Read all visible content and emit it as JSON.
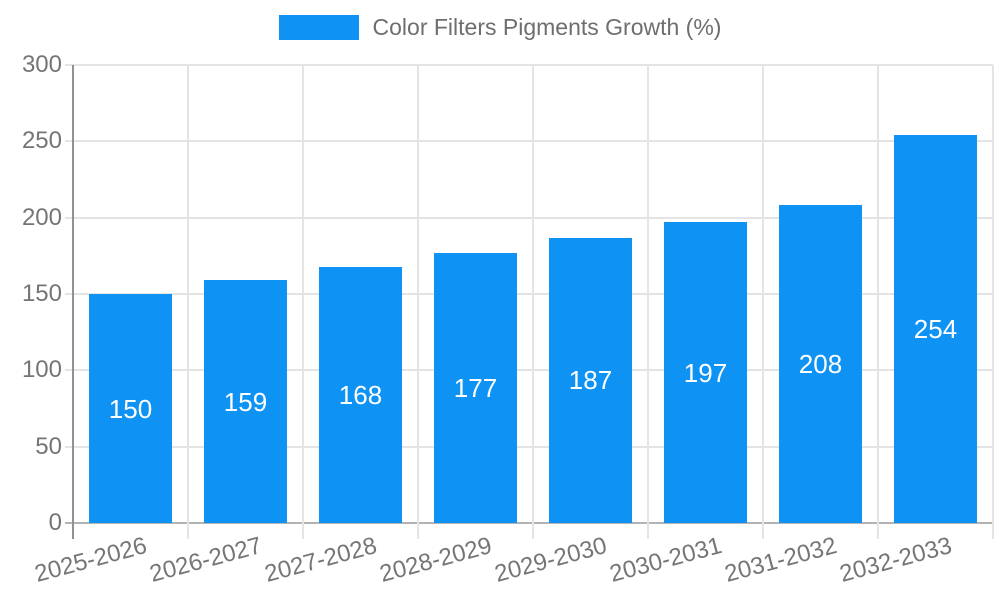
{
  "chart_data": {
    "type": "bar",
    "title": "Color Filters Pigments Growth (%)",
    "series_name": "Color Filters Pigments Growth (%)",
    "categories": [
      "2025-2026",
      "2026-2027",
      "2027-2028",
      "2028-2029",
      "2029-2030",
      "2030-2031",
      "2031-2032",
      "2032-2033"
    ],
    "values": [
      150,
      159,
      168,
      177,
      187,
      197,
      208,
      254
    ],
    "xlabel": "",
    "ylabel": "",
    "ylim": [
      0,
      300
    ],
    "yticks": [
      0,
      50,
      100,
      150,
      200,
      250,
      300
    ],
    "grid": true,
    "legend_position": "top",
    "bar_color": "#0e92f4",
    "bar_label_color": "#ffffff",
    "axis_text_color": "#757575",
    "gridline_color": "#e4e4e4",
    "axis_line_color": "#919191",
    "baseline_color": "#b3b3b3"
  }
}
